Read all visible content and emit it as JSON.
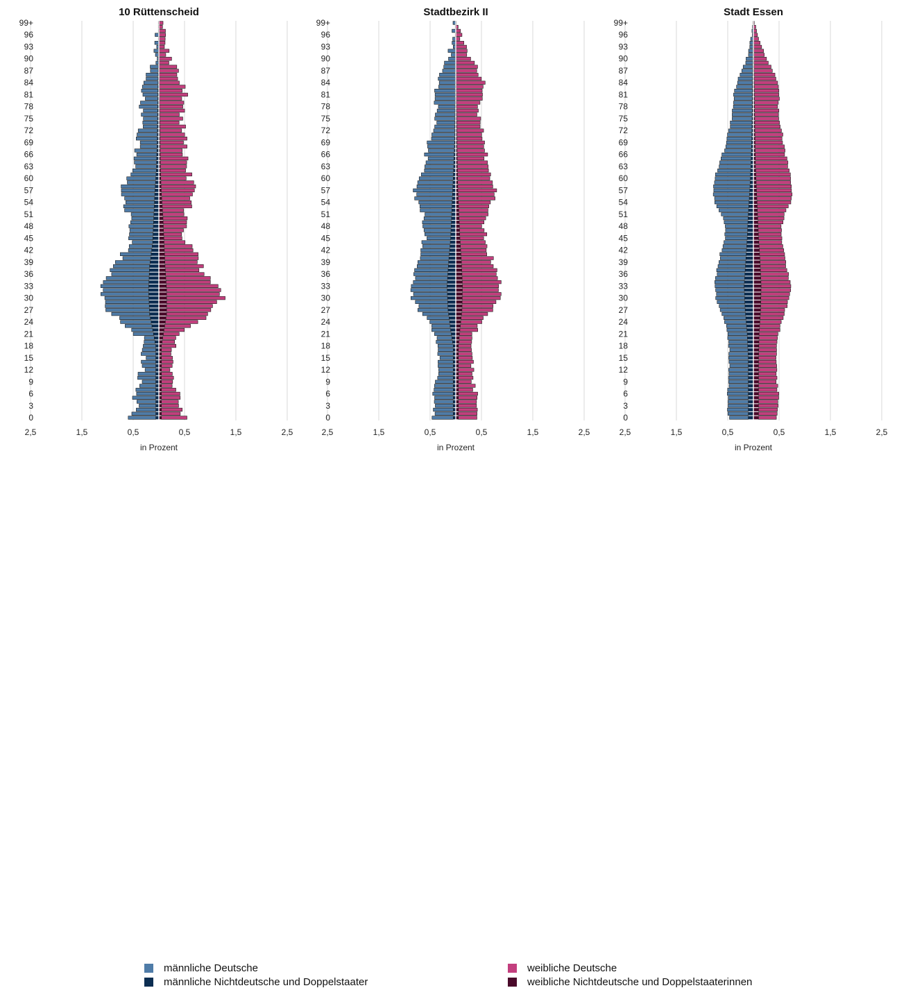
{
  "chart_data": {
    "type": "bar",
    "x_unit_label": "in Prozent",
    "x_ticks": [
      "2,5",
      "1,5",
      "0,5",
      "0,5",
      "1,5",
      "2,5"
    ],
    "xlim": [
      -2.5,
      2.5
    ],
    "grid": true,
    "age_labels": [
      "0",
      "3",
      "6",
      "9",
      "12",
      "15",
      "18",
      "21",
      "24",
      "27",
      "30",
      "33",
      "36",
      "39",
      "42",
      "45",
      "48",
      "51",
      "54",
      "57",
      "60",
      "63",
      "66",
      "69",
      "72",
      "75",
      "78",
      "81",
      "84",
      "87",
      "90",
      "93",
      "96",
      "99+"
    ],
    "legend_placement": "bottom",
    "series": [
      {
        "key": "md",
        "name": "männliche Deutsche",
        "color": "#4f7ca8"
      },
      {
        "key": "mn",
        "name": "männliche Nichtdeutsche und Doppelstaater",
        "color": "#0c2e52"
      },
      {
        "key": "wd",
        "name": "weibliche Deutsche",
        "color": "#c33f7e"
      },
      {
        "key": "wn",
        "name": "weibliche Nichtdeutsche und Doppelstaaterinnen",
        "color": "#4a0a2a"
      }
    ],
    "panels": [
      {
        "title": "10 Rüttenscheid",
        "male_total_anchors": [
          [
            0,
            0.58
          ],
          [
            2,
            0.45
          ],
          [
            5,
            0.45
          ],
          [
            8,
            0.4
          ],
          [
            11,
            0.35
          ],
          [
            14,
            0.3
          ],
          [
            17,
            0.3
          ],
          [
            20,
            0.35
          ],
          [
            22,
            0.55
          ],
          [
            24,
            0.7
          ],
          [
            26,
            0.95
          ],
          [
            28,
            1.0
          ],
          [
            30,
            1.1
          ],
          [
            32,
            1.15
          ],
          [
            34,
            1.1
          ],
          [
            36,
            0.95
          ],
          [
            38,
            0.9
          ],
          [
            40,
            0.75
          ],
          [
            42,
            0.65
          ],
          [
            44,
            0.55
          ],
          [
            46,
            0.55
          ],
          [
            48,
            0.55
          ],
          [
            50,
            0.52
          ],
          [
            52,
            0.6
          ],
          [
            54,
            0.68
          ],
          [
            56,
            0.7
          ],
          [
            58,
            0.7
          ],
          [
            60,
            0.6
          ],
          [
            62,
            0.5
          ],
          [
            64,
            0.45
          ],
          [
            66,
            0.45
          ],
          [
            68,
            0.42
          ],
          [
            70,
            0.4
          ],
          [
            72,
            0.38
          ],
          [
            74,
            0.35
          ],
          [
            76,
            0.35
          ],
          [
            78,
            0.35
          ],
          [
            80,
            0.32
          ],
          [
            82,
            0.3
          ],
          [
            84,
            0.25
          ],
          [
            86,
            0.2
          ],
          [
            88,
            0.15
          ],
          [
            90,
            0.1
          ],
          [
            93,
            0.05
          ],
          [
            96,
            0.02
          ],
          [
            99,
            0.01
          ]
        ],
        "male_nd_anchors": [
          [
            0,
            0.06
          ],
          [
            18,
            0.06
          ],
          [
            22,
            0.12
          ],
          [
            26,
            0.18
          ],
          [
            32,
            0.2
          ],
          [
            38,
            0.18
          ],
          [
            44,
            0.12
          ],
          [
            50,
            0.1
          ],
          [
            56,
            0.08
          ],
          [
            62,
            0.05
          ],
          [
            70,
            0.03
          ],
          [
            80,
            0.02
          ],
          [
            99,
            0.0
          ]
        ],
        "female_total_anchors": [
          [
            0,
            0.55
          ],
          [
            2,
            0.4
          ],
          [
            5,
            0.4
          ],
          [
            8,
            0.32
          ],
          [
            11,
            0.28
          ],
          [
            14,
            0.28
          ],
          [
            17,
            0.25
          ],
          [
            20,
            0.3
          ],
          [
            22,
            0.45
          ],
          [
            24,
            0.7
          ],
          [
            26,
            1.0
          ],
          [
            28,
            1.05
          ],
          [
            30,
            1.25
          ],
          [
            32,
            1.2
          ],
          [
            34,
            1.0
          ],
          [
            36,
            0.9
          ],
          [
            38,
            0.8
          ],
          [
            40,
            0.7
          ],
          [
            42,
            0.7
          ],
          [
            44,
            0.5
          ],
          [
            46,
            0.5
          ],
          [
            48,
            0.5
          ],
          [
            50,
            0.5
          ],
          [
            52,
            0.55
          ],
          [
            54,
            0.6
          ],
          [
            56,
            0.65
          ],
          [
            58,
            0.65
          ],
          [
            60,
            0.6
          ],
          [
            62,
            0.55
          ],
          [
            64,
            0.55
          ],
          [
            66,
            0.5
          ],
          [
            68,
            0.55
          ],
          [
            70,
            0.5
          ],
          [
            72,
            0.5
          ],
          [
            74,
            0.45
          ],
          [
            76,
            0.45
          ],
          [
            78,
            0.45
          ],
          [
            80,
            0.5
          ],
          [
            82,
            0.5
          ],
          [
            84,
            0.45
          ],
          [
            86,
            0.35
          ],
          [
            88,
            0.3
          ],
          [
            90,
            0.2
          ],
          [
            93,
            0.15
          ],
          [
            96,
            0.08
          ],
          [
            99,
            0.05
          ]
        ],
        "female_nd_anchors": [
          [
            0,
            0.05
          ],
          [
            18,
            0.05
          ],
          [
            22,
            0.1
          ],
          [
            26,
            0.15
          ],
          [
            32,
            0.15
          ],
          [
            38,
            0.12
          ],
          [
            44,
            0.1
          ],
          [
            50,
            0.08
          ],
          [
            56,
            0.05
          ],
          [
            62,
            0.03
          ],
          [
            70,
            0.02
          ],
          [
            80,
            0.01
          ],
          [
            99,
            0.0
          ]
        ],
        "noise_seed": 11,
        "noise_amp": 0.07
      },
      {
        "title": "Stadtbezirk II",
        "male_total_anchors": [
          [
            0,
            0.45
          ],
          [
            3,
            0.42
          ],
          [
            6,
            0.4
          ],
          [
            9,
            0.38
          ],
          [
            12,
            0.35
          ],
          [
            15,
            0.33
          ],
          [
            18,
            0.33
          ],
          [
            21,
            0.38
          ],
          [
            24,
            0.5
          ],
          [
            27,
            0.7
          ],
          [
            30,
            0.85
          ],
          [
            33,
            0.9
          ],
          [
            36,
            0.8
          ],
          [
            39,
            0.75
          ],
          [
            42,
            0.65
          ],
          [
            45,
            0.6
          ],
          [
            48,
            0.6
          ],
          [
            51,
            0.65
          ],
          [
            54,
            0.75
          ],
          [
            57,
            0.78
          ],
          [
            60,
            0.7
          ],
          [
            63,
            0.6
          ],
          [
            66,
            0.58
          ],
          [
            69,
            0.52
          ],
          [
            72,
            0.45
          ],
          [
            75,
            0.4
          ],
          [
            78,
            0.38
          ],
          [
            81,
            0.38
          ],
          [
            84,
            0.35
          ],
          [
            87,
            0.25
          ],
          [
            90,
            0.15
          ],
          [
            93,
            0.08
          ],
          [
            96,
            0.04
          ],
          [
            99,
            0.02
          ]
        ],
        "male_nd_anchors": [
          [
            0,
            0.05
          ],
          [
            18,
            0.05
          ],
          [
            22,
            0.1
          ],
          [
            27,
            0.15
          ],
          [
            33,
            0.17
          ],
          [
            39,
            0.14
          ],
          [
            45,
            0.1
          ],
          [
            51,
            0.08
          ],
          [
            57,
            0.06
          ],
          [
            63,
            0.04
          ],
          [
            70,
            0.02
          ],
          [
            80,
            0.01
          ],
          [
            99,
            0.0
          ]
        ],
        "female_total_anchors": [
          [
            0,
            0.42
          ],
          [
            3,
            0.4
          ],
          [
            6,
            0.38
          ],
          [
            9,
            0.35
          ],
          [
            12,
            0.33
          ],
          [
            15,
            0.32
          ],
          [
            18,
            0.3
          ],
          [
            21,
            0.35
          ],
          [
            24,
            0.5
          ],
          [
            27,
            0.7
          ],
          [
            30,
            0.85
          ],
          [
            33,
            0.88
          ],
          [
            36,
            0.78
          ],
          [
            39,
            0.72
          ],
          [
            42,
            0.62
          ],
          [
            45,
            0.58
          ],
          [
            48,
            0.55
          ],
          [
            51,
            0.62
          ],
          [
            54,
            0.7
          ],
          [
            57,
            0.75
          ],
          [
            60,
            0.68
          ],
          [
            63,
            0.62
          ],
          [
            66,
            0.58
          ],
          [
            69,
            0.55
          ],
          [
            72,
            0.52
          ],
          [
            75,
            0.45
          ],
          [
            78,
            0.45
          ],
          [
            81,
            0.5
          ],
          [
            84,
            0.55
          ],
          [
            87,
            0.42
          ],
          [
            90,
            0.3
          ],
          [
            93,
            0.18
          ],
          [
            96,
            0.1
          ],
          [
            99,
            0.05
          ]
        ],
        "female_nd_anchors": [
          [
            0,
            0.05
          ],
          [
            18,
            0.05
          ],
          [
            22,
            0.08
          ],
          [
            27,
            0.12
          ],
          [
            33,
            0.13
          ],
          [
            39,
            0.11
          ],
          [
            45,
            0.08
          ],
          [
            51,
            0.06
          ],
          [
            57,
            0.04
          ],
          [
            63,
            0.03
          ],
          [
            70,
            0.02
          ],
          [
            80,
            0.01
          ],
          [
            99,
            0.0
          ]
        ],
        "noise_seed": 23,
        "noise_amp": 0.05
      },
      {
        "title": "Stadt Essen",
        "male_total_anchors": [
          [
            0,
            0.48
          ],
          [
            3,
            0.5
          ],
          [
            6,
            0.5
          ],
          [
            9,
            0.48
          ],
          [
            12,
            0.47
          ],
          [
            15,
            0.47
          ],
          [
            18,
            0.47
          ],
          [
            21,
            0.5
          ],
          [
            24,
            0.55
          ],
          [
            27,
            0.65
          ],
          [
            30,
            0.72
          ],
          [
            33,
            0.75
          ],
          [
            36,
            0.72
          ],
          [
            39,
            0.68
          ],
          [
            42,
            0.62
          ],
          [
            45,
            0.55
          ],
          [
            48,
            0.55
          ],
          [
            51,
            0.62
          ],
          [
            54,
            0.75
          ],
          [
            57,
            0.78
          ],
          [
            60,
            0.75
          ],
          [
            63,
            0.68
          ],
          [
            66,
            0.6
          ],
          [
            69,
            0.52
          ],
          [
            72,
            0.48
          ],
          [
            75,
            0.42
          ],
          [
            78,
            0.4
          ],
          [
            81,
            0.38
          ],
          [
            84,
            0.32
          ],
          [
            87,
            0.22
          ],
          [
            90,
            0.13
          ],
          [
            93,
            0.07
          ],
          [
            96,
            0.03
          ],
          [
            99,
            0.01
          ]
        ],
        "male_nd_anchors": [
          [
            0,
            0.1
          ],
          [
            15,
            0.1
          ],
          [
            21,
            0.12
          ],
          [
            27,
            0.16
          ],
          [
            33,
            0.18
          ],
          [
            39,
            0.15
          ],
          [
            45,
            0.12
          ],
          [
            51,
            0.1
          ],
          [
            57,
            0.07
          ],
          [
            63,
            0.05
          ],
          [
            70,
            0.03
          ],
          [
            80,
            0.02
          ],
          [
            99,
            0.0
          ]
        ],
        "female_total_anchors": [
          [
            0,
            0.45
          ],
          [
            3,
            0.48
          ],
          [
            6,
            0.48
          ],
          [
            9,
            0.45
          ],
          [
            12,
            0.45
          ],
          [
            15,
            0.45
          ],
          [
            18,
            0.45
          ],
          [
            21,
            0.48
          ],
          [
            24,
            0.55
          ],
          [
            27,
            0.62
          ],
          [
            30,
            0.7
          ],
          [
            33,
            0.72
          ],
          [
            36,
            0.68
          ],
          [
            39,
            0.62
          ],
          [
            42,
            0.6
          ],
          [
            45,
            0.55
          ],
          [
            48,
            0.55
          ],
          [
            51,
            0.6
          ],
          [
            54,
            0.72
          ],
          [
            57,
            0.75
          ],
          [
            60,
            0.72
          ],
          [
            63,
            0.68
          ],
          [
            66,
            0.62
          ],
          [
            69,
            0.58
          ],
          [
            72,
            0.55
          ],
          [
            75,
            0.5
          ],
          [
            78,
            0.48
          ],
          [
            81,
            0.5
          ],
          [
            84,
            0.48
          ],
          [
            87,
            0.38
          ],
          [
            90,
            0.25
          ],
          [
            93,
            0.15
          ],
          [
            96,
            0.08
          ],
          [
            99,
            0.03
          ]
        ],
        "female_nd_anchors": [
          [
            0,
            0.1
          ],
          [
            15,
            0.1
          ],
          [
            21,
            0.11
          ],
          [
            27,
            0.14
          ],
          [
            33,
            0.15
          ],
          [
            39,
            0.13
          ],
          [
            45,
            0.1
          ],
          [
            51,
            0.08
          ],
          [
            57,
            0.06
          ],
          [
            63,
            0.04
          ],
          [
            70,
            0.03
          ],
          [
            80,
            0.02
          ],
          [
            99,
            0.0
          ]
        ],
        "noise_seed": 37,
        "noise_amp": 0.015
      }
    ]
  }
}
